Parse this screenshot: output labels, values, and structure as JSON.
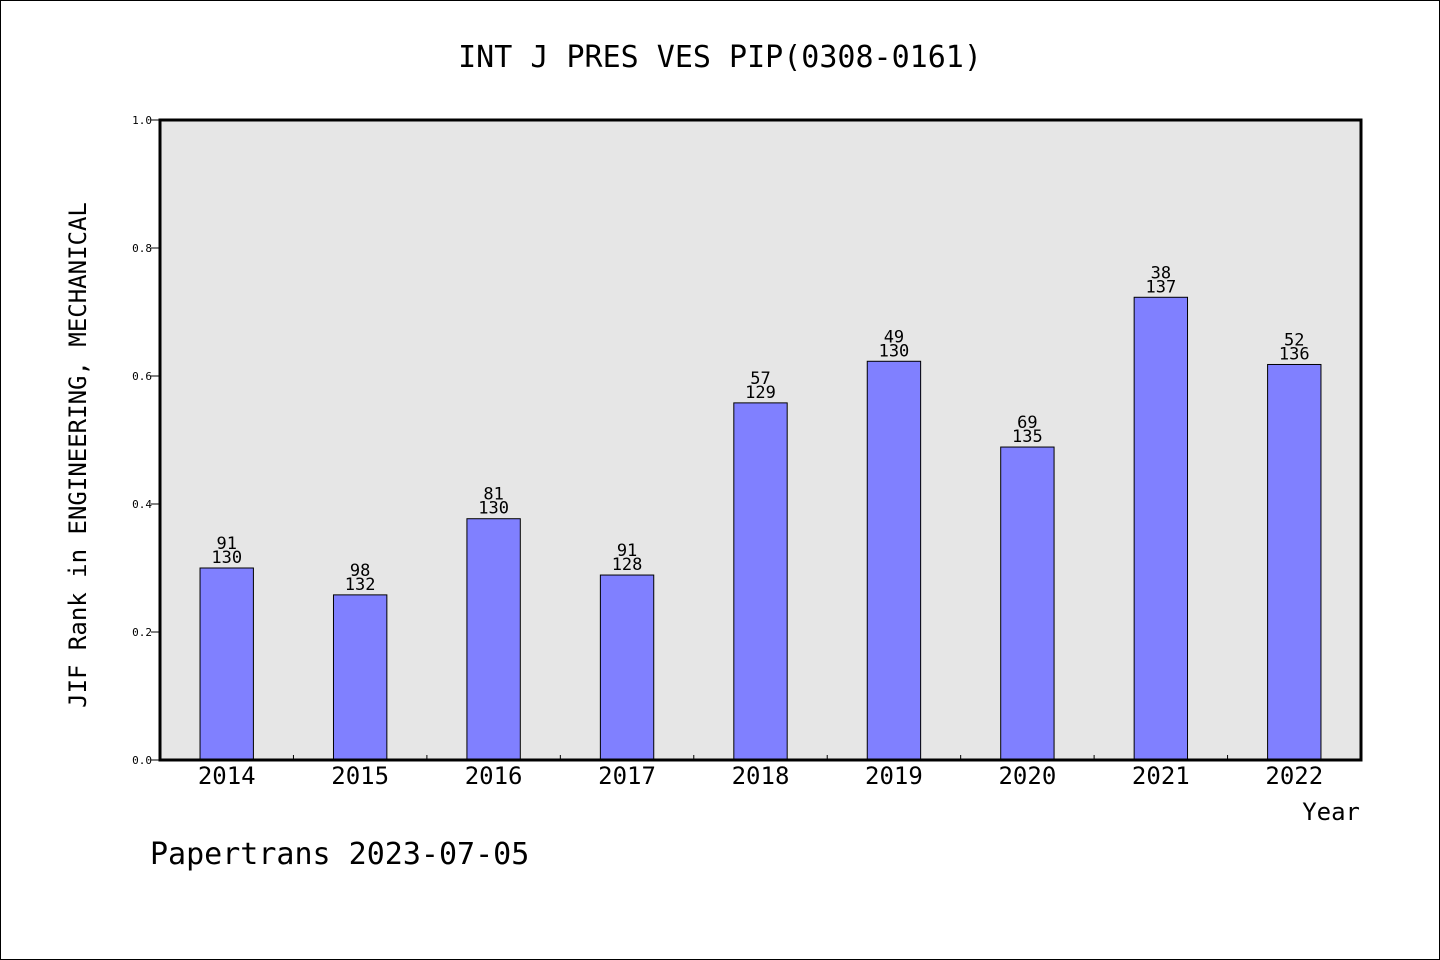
{
  "chart_data": {
    "type": "bar",
    "title": "INT J PRES VES PIP(0308-0161)",
    "xlabel": "Year",
    "ylabel": "JIF Rank in ENGINEERING, MECHANICAL",
    "ylim": [
      0,
      1
    ],
    "yticks": [
      "0.0",
      "0.2",
      "0.4",
      "0.6",
      "0.8",
      "1.0"
    ],
    "ytick_values": [
      0,
      0.2,
      0.4,
      0.6,
      0.8,
      1.0
    ],
    "categories": [
      "2014",
      "2015",
      "2016",
      "2017",
      "2018",
      "2019",
      "2020",
      "2021",
      "2022"
    ],
    "values": [
      0.3,
      0.258,
      0.377,
      0.289,
      0.558,
      0.623,
      0.489,
      0.723,
      0.618
    ],
    "rank": [
      "91",
      "98",
      "81",
      "91",
      "57",
      "49",
      "69",
      "38",
      "52"
    ],
    "total": [
      "130",
      "132",
      "130",
      "128",
      "129",
      "130",
      "135",
      "137",
      "136"
    ],
    "grid": false,
    "legend": "none",
    "colors": {
      "bar_fill": "#8080ff",
      "plot_background": "#e6e6e6",
      "axis": "#000000"
    }
  },
  "footer": "Papertrans 2023-07-05"
}
